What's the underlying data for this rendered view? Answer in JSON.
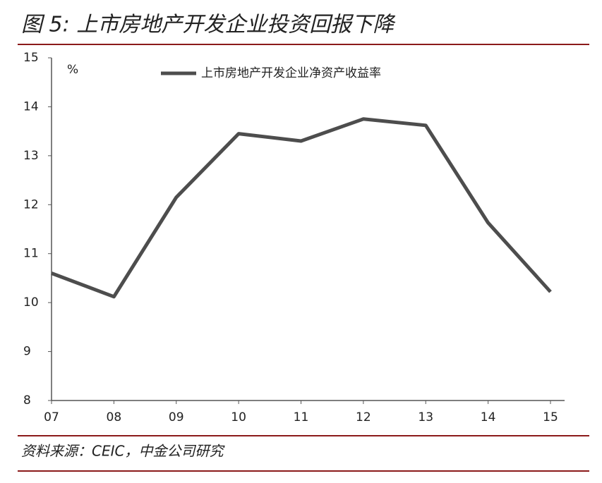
{
  "chart_data": {
    "type": "line",
    "title": "图 5: 上市房地产开发企业投资回报下降",
    "ylabel": "%",
    "categories": [
      "07",
      "08",
      "09",
      "10",
      "11",
      "12",
      "13",
      "14",
      "15"
    ],
    "series": [
      {
        "name": "上市房地产开发企业净资产收益率",
        "color": "#4d4d4d",
        "values": [
          10.6,
          10.12,
          12.15,
          13.45,
          13.3,
          13.75,
          13.62,
          11.63,
          10.22
        ]
      }
    ],
    "ylim": [
      8,
      15
    ],
    "yticks": [
      8,
      9,
      10,
      11,
      12,
      13,
      14,
      15
    ],
    "source": "资料来源：CEIC，中金公司研究"
  }
}
